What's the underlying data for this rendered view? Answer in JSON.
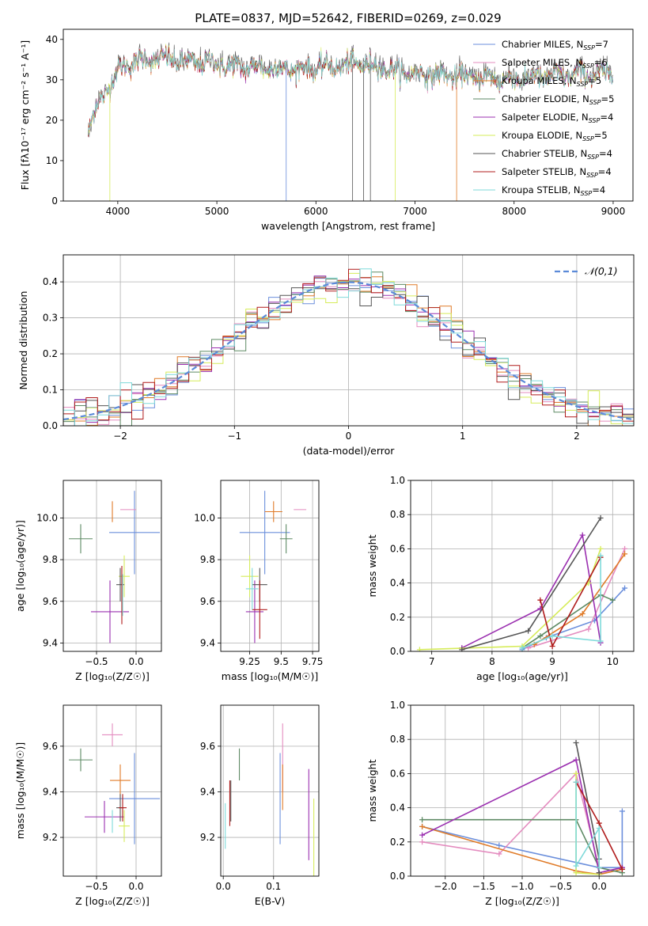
{
  "figure_title": "PLATE=0837, MJD=52642, FIBERID=0269, z=0.029",
  "models": [
    {
      "name": "Chabrier MILES",
      "nssp": "7",
      "color": "#6b8fdc"
    },
    {
      "name": "Salpeter MILES",
      "nssp": "6",
      "color": "#e48cbf"
    },
    {
      "name": "Kroupa MILES",
      "nssp": "5",
      "color": "#e07b28"
    },
    {
      "name": "Chabrier ELODIE",
      "nssp": "5",
      "color": "#5e8a64"
    },
    {
      "name": "Salpeter ELODIE",
      "nssp": "4",
      "color": "#9b30b0"
    },
    {
      "name": "Kroupa ELODIE",
      "nssp": "5",
      "color": "#d6ec5a"
    },
    {
      "name": "Chabrier STELIB",
      "nssp": "4",
      "color": "#555555"
    },
    {
      "name": "Salpeter STELIB",
      "nssp": "4",
      "color": "#b01c1c"
    },
    {
      "name": "Kroupa STELIB",
      "nssp": "4",
      "color": "#7fdada"
    }
  ],
  "chart_data": [
    {
      "id": "spectrum",
      "type": "line",
      "xlabel": "wavelength [Angstrom, rest frame]",
      "ylabel": "Flux [fλ10⁻¹⁷ erg cm⁻² s⁻¹ A⁻¹]",
      "xlim": [
        3450,
        9200
      ],
      "ylim": [
        0,
        42.5
      ],
      "xticks": [
        4000,
        5000,
        6000,
        7000,
        8000,
        9000
      ],
      "yticks": [
        0,
        10,
        20,
        30,
        40
      ],
      "legend": "top-right",
      "anchors_x": [
        3700,
        3800,
        3900,
        4000,
        4100,
        4300,
        4500,
        4800,
        5000,
        5200,
        5500,
        5800,
        6100,
        6400,
        6600,
        6800,
        7000,
        7300,
        7600,
        7900,
        8200,
        8500,
        8800,
        9000
      ],
      "anchors_y": [
        17,
        24,
        28,
        32,
        34,
        35,
        35,
        34,
        34,
        33,
        33,
        32.5,
        33,
        34,
        33.5,
        32,
        31.5,
        31,
        30.5,
        30,
        30.5,
        31,
        31.5,
        31
      ],
      "approximate": true
    },
    {
      "id": "residuals",
      "type": "line",
      "xlabel": "(data-model)/error",
      "ylabel": "Normed distribution",
      "xlim": [
        -2.5,
        2.5
      ],
      "ylim": [
        0,
        0.475
      ],
      "xticks": [
        -2,
        -1,
        0,
        1,
        2
      ],
      "yticks": [
        0.0,
        0.1,
        0.2,
        0.3,
        0.4
      ],
      "legend": "top-right",
      "reference": {
        "label": "𝒩(0,1)",
        "color": "#5b8ad8",
        "mean": 0,
        "sigma": 1
      },
      "bin_width": 0.1,
      "approximate": true
    },
    {
      "id": "age_vs_Z",
      "type": "scatter",
      "xlabel": "Z [log₁₀(Z/Z☉)]",
      "ylabel": "age  [log₁₀(age/yr)]",
      "xlim": [
        -0.92,
        0.32
      ],
      "ylim": [
        9.36,
        10.18
      ],
      "xticks": [
        -0.5,
        0.0
      ],
      "yticks": [
        9.4,
        9.6,
        9.8,
        10.0
      ],
      "points": [
        {
          "x": -0.02,
          "xerr": 0.32,
          "y": 9.93,
          "yerr": 0.2
        },
        {
          "x": -0.1,
          "xerr": 0.1,
          "y": 10.04,
          "yerr": 0.0
        },
        {
          "x": -0.3,
          "xerr": 0.0,
          "y": 10.03,
          "yerr": 0.05
        },
        {
          "x": -0.7,
          "xerr": 0.15,
          "y": 9.9,
          "yerr": 0.07
        },
        {
          "x": -0.33,
          "xerr": 0.24,
          "y": 9.55,
          "yerr": 0.15
        },
        {
          "x": -0.15,
          "xerr": 0.07,
          "y": 9.72,
          "yerr": 0.1
        },
        {
          "x": -0.2,
          "xerr": 0.05,
          "y": 9.68,
          "yerr": 0.08
        },
        {
          "x": -0.18,
          "xerr": 0.0,
          "y": 9.63,
          "yerr": 0.14
        },
        {
          "x": -0.17,
          "xerr": 0.0,
          "y": 9.63,
          "yerr": 0.1
        }
      ]
    },
    {
      "id": "age_vs_mass",
      "type": "scatter",
      "xlabel": "mass [log₁₀(M/M☉)]",
      "ylabel": "",
      "xlim": [
        9.02,
        9.8
      ],
      "ylim": [
        9.36,
        10.18
      ],
      "xticks": [
        9.25,
        9.5,
        9.75
      ],
      "yticks": [
        9.4,
        9.6,
        9.8,
        10.0
      ],
      "points": [
        {
          "x": 9.37,
          "xerr": 0.2,
          "y": 9.93,
          "yerr": 0.2
        },
        {
          "x": 9.65,
          "xerr": 0.05,
          "y": 10.04,
          "yerr": 0.0
        },
        {
          "x": 9.44,
          "xerr": 0.07,
          "y": 10.03,
          "yerr": 0.05
        },
        {
          "x": 9.54,
          "xerr": 0.05,
          "y": 9.9,
          "yerr": 0.07
        },
        {
          "x": 9.29,
          "xerr": 0.07,
          "y": 9.55,
          "yerr": 0.15
        },
        {
          "x": 9.25,
          "xerr": 0.07,
          "y": 9.72,
          "yerr": 0.1
        },
        {
          "x": 9.33,
          "xerr": 0.06,
          "y": 9.68,
          "yerr": 0.08
        },
        {
          "x": 9.33,
          "xerr": 0.06,
          "y": 9.56,
          "yerr": 0.14
        },
        {
          "x": 9.27,
          "xerr": 0.05,
          "y": 9.66,
          "yerr": 0.1
        }
      ]
    },
    {
      "id": "massweight_vs_age",
      "type": "line",
      "xlabel": "age  [log₁₀(age/yr)]",
      "ylabel": "mass weight",
      "xlim": [
        6.65,
        10.35
      ],
      "ylim": [
        0.0,
        1.0
      ],
      "xticks": [
        7,
        8,
        9,
        10
      ],
      "yticks": [
        0.0,
        0.2,
        0.4,
        0.6,
        0.8,
        1.0
      ],
      "series": [
        {
          "x": [
            8.5,
            8.9,
            9.7,
            10.2
          ],
          "y": [
            0.01,
            0.08,
            0.18,
            0.37
          ]
        },
        {
          "x": [
            8.6,
            9.6,
            10.2
          ],
          "y": [
            0.02,
            0.13,
            0.6
          ]
        },
        {
          "x": [
            8.7,
            9.5,
            10.2
          ],
          "y": [
            0.04,
            0.22,
            0.57
          ]
        },
        {
          "x": [
            8.5,
            8.8,
            9.8,
            10.0
          ],
          "y": [
            0.02,
            0.09,
            0.33,
            0.3
          ]
        },
        {
          "x": [
            7.5,
            8.8,
            9.5,
            9.8
          ],
          "y": [
            0.02,
            0.25,
            0.68,
            0.05
          ]
        },
        {
          "x": [
            6.8,
            8.5,
            9.6,
            9.8
          ],
          "y": [
            0.01,
            0.03,
            0.4,
            0.6
          ]
        },
        {
          "x": [
            7.5,
            8.6,
            9.8
          ],
          "y": [
            0.01,
            0.12,
            0.78
          ]
        },
        {
          "x": [
            8.8,
            9.0,
            9.8
          ],
          "y": [
            0.3,
            0.03,
            0.55
          ]
        },
        {
          "x": [
            8.5,
            9.0,
            9.8,
            9.8
          ],
          "y": [
            0.02,
            0.09,
            0.06,
            0.56
          ]
        }
      ]
    },
    {
      "id": "mass_vs_Z",
      "type": "scatter",
      "xlabel": "Z [log₁₀(Z/Z☉)]",
      "ylabel": "mass [log₁₀(M/M☉)]",
      "xlim": [
        -0.92,
        0.32
      ],
      "ylim": [
        9.03,
        9.78
      ],
      "xticks": [
        -0.5,
        0.0
      ],
      "yticks": [
        9.2,
        9.4,
        9.6
      ],
      "points": [
        {
          "x": -0.02,
          "xerr": 0.32,
          "y": 9.37,
          "yerr": 0.2
        },
        {
          "x": -0.3,
          "xerr": 0.13,
          "y": 9.65,
          "yerr": 0.05
        },
        {
          "x": -0.2,
          "xerr": 0.13,
          "y": 9.45,
          "yerr": 0.07
        },
        {
          "x": -0.7,
          "xerr": 0.15,
          "y": 9.54,
          "yerr": 0.05
        },
        {
          "x": -0.4,
          "xerr": 0.25,
          "y": 9.29,
          "yerr": 0.07
        },
        {
          "x": -0.15,
          "xerr": 0.07,
          "y": 9.25,
          "yerr": 0.07
        },
        {
          "x": -0.2,
          "xerr": 0.05,
          "y": 9.33,
          "yerr": 0.06
        },
        {
          "x": -0.17,
          "xerr": 0.05,
          "y": 9.33,
          "yerr": 0.06
        },
        {
          "x": -0.3,
          "xerr": 0.0,
          "y": 9.27,
          "yerr": 0.05
        }
      ]
    },
    {
      "id": "mass_vs_ebv",
      "type": "scatter",
      "xlabel": "E(B-V)",
      "ylabel": "",
      "xlim": [
        -0.005,
        0.19
      ],
      "ylim": [
        9.03,
        9.78
      ],
      "xticks": [
        0.0,
        0.1
      ],
      "yticks": [
        9.2,
        9.4,
        9.6
      ],
      "points": [
        {
          "x": 0.113,
          "y": 9.37,
          "yerr": 0.2
        },
        {
          "x": 0.118,
          "y": 9.55,
          "yerr": 0.15
        },
        {
          "x": 0.118,
          "y": 9.42,
          "yerr": 0.1
        },
        {
          "x": 0.032,
          "y": 9.52,
          "yerr": 0.07
        },
        {
          "x": 0.17,
          "y": 9.3,
          "yerr": 0.2
        },
        {
          "x": 0.18,
          "y": 9.17,
          "yerr": 0.2
        },
        {
          "x": 0.015,
          "y": 9.36,
          "yerr": 0.09
        },
        {
          "x": 0.013,
          "y": 9.35,
          "yerr": 0.1
        },
        {
          "x": 0.004,
          "y": 9.25,
          "yerr": 0.1
        }
      ]
    },
    {
      "id": "massweight_vs_Z",
      "type": "line",
      "xlabel": "Z [log₁₀(Z/Z☉)]",
      "ylabel": "mass weight",
      "xlim": [
        -2.45,
        0.45
      ],
      "ylim": [
        0.0,
        1.0
      ],
      "xticks": [
        -2.0,
        -1.5,
        -1.0,
        -0.5,
        0.0
      ],
      "yticks": [
        0.0,
        0.2,
        0.4,
        0.6,
        0.8,
        1.0
      ],
      "series": [
        {
          "x": [
            -2.3,
            -1.3,
            0.0,
            0.3,
            0.3
          ],
          "y": [
            0.29,
            0.18,
            0.05,
            0.05,
            0.38
          ]
        },
        {
          "x": [
            -2.3,
            -1.3,
            -0.3,
            0.0
          ],
          "y": [
            0.2,
            0.13,
            0.6,
            0.05
          ]
        },
        {
          "x": [
            -2.3,
            -0.3,
            0.0,
            0.3
          ],
          "y": [
            0.29,
            0.03,
            0.01,
            0.04
          ]
        },
        {
          "x": [
            -2.3,
            -0.3,
            0.0,
            0.3
          ],
          "y": [
            0.33,
            0.33,
            0.05,
            0.02
          ]
        },
        {
          "x": [
            -2.3,
            -0.3,
            0.0,
            0.3
          ],
          "y": [
            0.24,
            0.68,
            0.02,
            0.05
          ]
        },
        {
          "x": [
            -0.3,
            -0.3,
            0.0
          ],
          "y": [
            0.6,
            0.02,
            0.01
          ]
        },
        {
          "x": [
            -0.3,
            0.0,
            0.0
          ],
          "y": [
            0.78,
            0.1,
            0.02
          ]
        },
        {
          "x": [
            -0.3,
            0.0,
            0.3
          ],
          "y": [
            0.55,
            0.31,
            0.04
          ]
        },
        {
          "x": [
            -0.3,
            -0.3,
            0.0,
            0.0
          ],
          "y": [
            0.55,
            0.06,
            0.28,
            0.05
          ]
        }
      ]
    }
  ]
}
